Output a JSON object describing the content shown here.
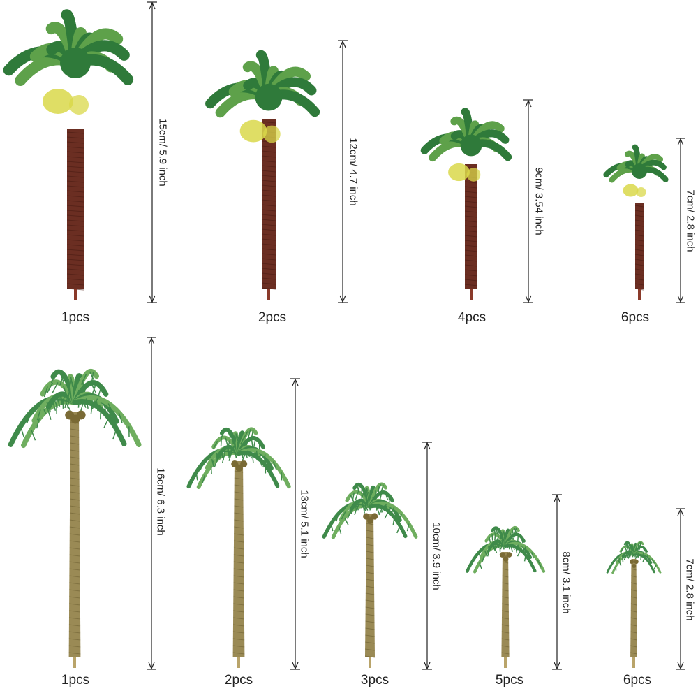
{
  "top_row": [
    {
      "height_label": "15cm/ 5.9 inch",
      "quantity": "1pcs",
      "style": "fan-palm"
    },
    {
      "height_label": "12cm/ 4.7 inch",
      "quantity": "2pcs",
      "style": "fan-palm"
    },
    {
      "height_label": "9cm/ 3.54 inch",
      "quantity": "4pcs",
      "style": "fan-palm"
    },
    {
      "height_label": "7cm/ 2.8 inch",
      "quantity": "6pcs",
      "style": "fan-palm"
    }
  ],
  "bottom_row": [
    {
      "height_label": "16cm/ 6.3 inch",
      "quantity": "1pcs",
      "style": "coconut-palm"
    },
    {
      "height_label": "13cm/ 5.1 inch",
      "quantity": "2pcs",
      "style": "coconut-palm"
    },
    {
      "height_label": "10cm/ 3.9 inch",
      "quantity": "3pcs",
      "style": "coconut-palm"
    },
    {
      "height_label": "8cm/ 3.1 inch",
      "quantity": "5pcs",
      "style": "coconut-palm"
    },
    {
      "height_label": "7cm/ 2.8 inch",
      "quantity": "6pcs",
      "style": "coconut-palm"
    }
  ],
  "colors": {
    "fan_trunk": "#6b2e22",
    "fan_trunk_dark": "#4a1c14",
    "fan_leaf": "#2f7a3a",
    "fan_leaf_light": "#5ea14a",
    "fan_leaf_yellow": "#d9d84a",
    "coco_trunk": "#9a8a55",
    "coco_trunk_dark": "#6f6233",
    "coco_leaf": "#3f8a4a",
    "coco_leaf_light": "#6fae5f",
    "nut": "#7a6a35",
    "measure_line": "#222222"
  }
}
